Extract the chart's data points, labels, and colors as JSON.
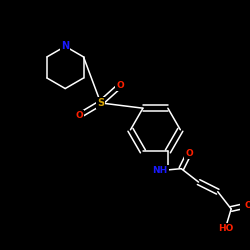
{
  "background_color": "#000000",
  "bond_color": "#ffffff",
  "atom_colors": {
    "N": "#1a1aff",
    "S": "#d4a000",
    "O": "#ff2000",
    "C": "#ffffff"
  },
  "figsize": [
    2.5,
    2.5
  ],
  "dpi": 100
}
